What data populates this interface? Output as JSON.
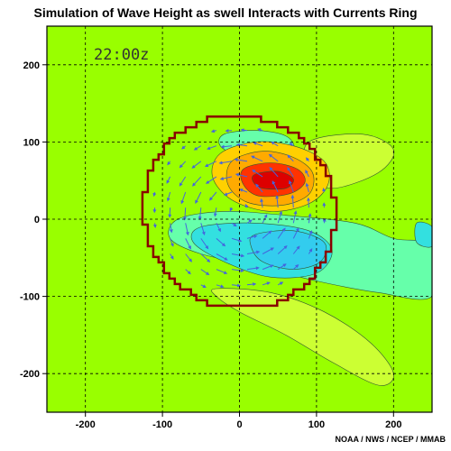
{
  "chart_data": {
    "type": "heatmap",
    "title": "Simulation of Wave Height as swell Interacts with Currents Ring",
    "time_label": "22:00z",
    "credit": "NOAA / NWS / NCEP / MMAB",
    "xlim": [
      -250,
      250
    ],
    "ylim": [
      -250,
      250
    ],
    "x_ticks": [
      -200,
      -100,
      0,
      100,
      200
    ],
    "y_ticks": [
      200,
      100,
      0,
      -100,
      -200
    ],
    "grid": true,
    "colors": {
      "background": "#99ff00",
      "yellow_green": "#ccff33",
      "light_cyan_green": "#66ffaa",
      "cyan": "#33e0e0",
      "light_blue": "#33ccee",
      "orange": "#ffaa00",
      "orange_red": "#ff5500",
      "red": "#ee0000",
      "core": "#cc4466",
      "ring_boundary": "#880000",
      "vectors": "#4466dd",
      "grid": "#000000"
    },
    "ring": {
      "center": [
        0,
        10
      ],
      "radius": 125
    },
    "contours": [
      {
        "level": "high-outer",
        "color": "#ffd000",
        "points": [
          [
            -25,
            85
          ],
          [
            20,
            100
          ],
          [
            70,
            95
          ],
          [
            110,
            75
          ],
          [
            115,
            45
          ],
          [
            90,
            20
          ],
          [
            40,
            10
          ],
          [
            -10,
            25
          ],
          [
            -35,
            55
          ]
        ]
      },
      {
        "level": "high-orange",
        "color": "#ffaa00",
        "points": [
          [
            -10,
            75
          ],
          [
            30,
            88
          ],
          [
            70,
            80
          ],
          [
            95,
            60
          ],
          [
            90,
            32
          ],
          [
            55,
            18
          ],
          [
            10,
            22
          ],
          [
            -15,
            45
          ]
        ]
      },
      {
        "level": "high-red",
        "color": "#ff3300",
        "points": [
          [
            5,
            65
          ],
          [
            40,
            73
          ],
          [
            75,
            65
          ],
          [
            85,
            48
          ],
          [
            65,
            33
          ],
          [
            25,
            30
          ],
          [
            5,
            45
          ]
        ]
      },
      {
        "level": "high-core",
        "color": "#dd0000",
        "points": [
          [
            20,
            58
          ],
          [
            50,
            62
          ],
          [
            70,
            52
          ],
          [
            60,
            40
          ],
          [
            30,
            40
          ],
          [
            18,
            48
          ]
        ]
      },
      {
        "level": "low-outer",
        "color": "#66ffaa",
        "points": [
          [
            -80,
            0
          ],
          [
            -20,
            10
          ],
          [
            60,
            5
          ],
          [
            150,
            -5
          ],
          [
            200,
            -25
          ],
          [
            250,
            -35
          ],
          [
            250,
            -100
          ],
          [
            180,
            -95
          ],
          [
            100,
            -80
          ],
          [
            20,
            -60
          ],
          [
            -50,
            -45
          ],
          [
            -90,
            -25
          ]
        ]
      },
      {
        "level": "low-cyan",
        "color": "#33e0e0",
        "points": [
          [
            -50,
            -10
          ],
          [
            20,
            -5
          ],
          [
            90,
            -15
          ],
          [
            120,
            -40
          ],
          [
            100,
            -70
          ],
          [
            40,
            -75
          ],
          [
            -20,
            -55
          ],
          [
            -60,
            -30
          ]
        ]
      },
      {
        "level": "low-blue",
        "color": "#33ccee",
        "points": [
          [
            20,
            -20
          ],
          [
            70,
            -15
          ],
          [
            110,
            -30
          ],
          [
            105,
            -55
          ],
          [
            70,
            -65
          ],
          [
            30,
            -55
          ],
          [
            15,
            -35
          ]
        ]
      },
      {
        "level": "upper-green",
        "color": "#66ffaa",
        "points": [
          [
            -20,
            110
          ],
          [
            20,
            115
          ],
          [
            60,
            108
          ],
          [
            70,
            90
          ],
          [
            40,
            80
          ],
          [
            0,
            82
          ],
          [
            -25,
            95
          ]
        ]
      },
      {
        "level": "east-yellow",
        "color": "#ccff33",
        "points": [
          [
            90,
            100
          ],
          [
            160,
            110
          ],
          [
            200,
            90
          ],
          [
            180,
            60
          ],
          [
            120,
            40
          ],
          [
            90,
            60
          ]
        ]
      },
      {
        "level": "east-cyan",
        "color": "#33e0e0",
        "points": [
          [
            230,
            -5
          ],
          [
            250,
            -10
          ],
          [
            250,
            -35
          ],
          [
            230,
            -30
          ]
        ]
      },
      {
        "level": "south-yellow",
        "color": "#ccff33",
        "points": [
          [
            -30,
            -90
          ],
          [
            40,
            -95
          ],
          [
            110,
            -120
          ],
          [
            170,
            -160
          ],
          [
            200,
            -200
          ],
          [
            180,
            -215
          ],
          [
            120,
            -185
          ],
          [
            60,
            -150
          ],
          [
            0,
            -120
          ],
          [
            -30,
            -100
          ]
        ]
      }
    ]
  }
}
